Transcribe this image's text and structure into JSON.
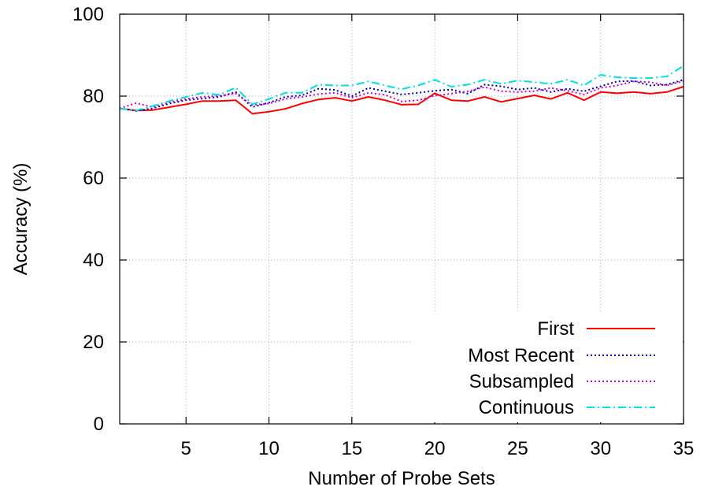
{
  "chart_data": {
    "type": "line",
    "title": "",
    "xlabel": "Number of Probe Sets",
    "ylabel": "Accuracy (%)",
    "xlim": [
      1,
      35
    ],
    "ylim": [
      0,
      100
    ],
    "xticks": [
      "5",
      "10",
      "15",
      "20",
      "25",
      "30",
      "35"
    ],
    "yticks": [
      "0",
      "20",
      "40",
      "60",
      "80",
      "100"
    ],
    "grid": true,
    "legend_position": "bottom-right",
    "x": [
      1,
      2,
      3,
      4,
      5,
      6,
      7,
      8,
      9,
      10,
      11,
      12,
      13,
      14,
      15,
      16,
      17,
      18,
      19,
      20,
      21,
      22,
      23,
      24,
      25,
      26,
      27,
      28,
      29,
      30,
      31,
      32,
      33,
      34,
      35
    ],
    "series": [
      {
        "name": "First",
        "color": "#ff0000",
        "dash": "solid",
        "values": [
          77.0,
          76.5,
          76.6,
          77.3,
          78.0,
          78.8,
          78.8,
          79.0,
          75.7,
          76.2,
          76.9,
          78.2,
          79.2,
          79.6,
          78.8,
          79.8,
          79.0,
          77.9,
          78.0,
          80.7,
          79.0,
          78.8,
          79.8,
          78.6,
          79.4,
          80.2,
          79.3,
          80.8,
          79.0,
          81.0,
          80.7,
          81.0,
          80.6,
          81.0,
          82.3
        ]
      },
      {
        "name": "Most Recent",
        "color": "#0000cc",
        "dash": "dotted",
        "values": [
          77.0,
          76.4,
          77.0,
          78.2,
          79.0,
          79.4,
          79.8,
          81.0,
          77.3,
          78.4,
          79.8,
          80.2,
          81.8,
          81.5,
          80.0,
          82.0,
          81.2,
          80.4,
          80.8,
          81.3,
          81.6,
          80.6,
          82.8,
          82.4,
          81.6,
          82.0,
          81.0,
          81.8,
          81.2,
          82.4,
          83.6,
          83.7,
          82.6,
          82.8,
          84.0
        ]
      },
      {
        "name": "Subsampled",
        "color": "#cc00cc",
        "dash": "dotted",
        "values": [
          77.0,
          78.3,
          77.3,
          78.5,
          79.3,
          79.8,
          80.1,
          80.6,
          77.8,
          78.2,
          79.3,
          79.8,
          80.5,
          80.8,
          79.6,
          80.8,
          80.3,
          78.7,
          79.0,
          80.1,
          80.6,
          81.2,
          82.2,
          81.2,
          81.0,
          81.2,
          82.0,
          81.3,
          80.4,
          82.0,
          82.6,
          83.6,
          83.4,
          82.6,
          83.7
        ]
      },
      {
        "name": "Continuous",
        "color": "#00e0e0",
        "dash": "dashdot",
        "values": [
          77.0,
          76.5,
          77.6,
          78.8,
          79.8,
          80.8,
          80.3,
          82.1,
          78.0,
          79.3,
          80.8,
          80.8,
          82.8,
          82.6,
          82.6,
          83.6,
          82.6,
          81.7,
          82.6,
          84.0,
          82.3,
          82.8,
          84.0,
          83.0,
          83.8,
          83.4,
          83.0,
          84.0,
          82.6,
          85.2,
          84.6,
          84.4,
          84.4,
          84.8,
          87.4
        ]
      }
    ]
  }
}
